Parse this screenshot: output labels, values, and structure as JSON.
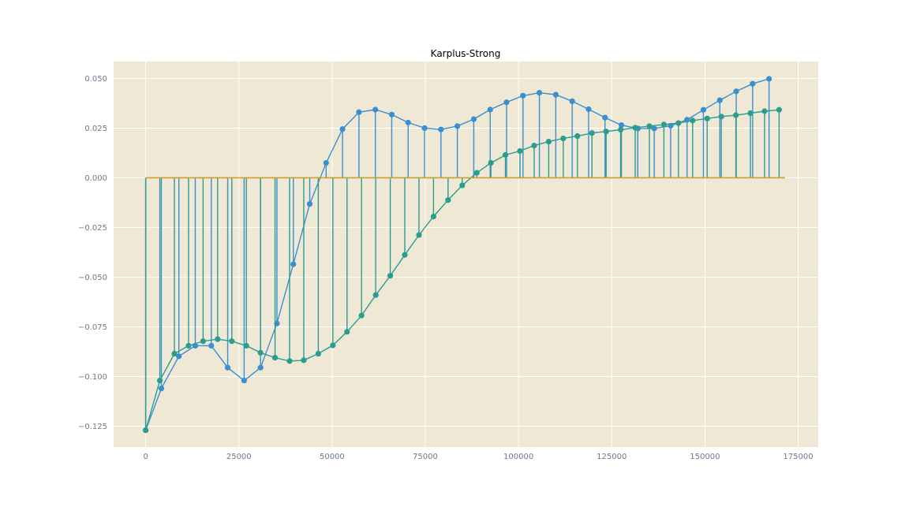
{
  "chart_data": {
    "type": "line",
    "title": "Karplus-Strong",
    "xlabel": "",
    "ylabel": "",
    "xlim": [
      -8600,
      180400
    ],
    "ylim": [
      -0.1355,
      0.0585
    ],
    "xticks": [
      0,
      25000,
      50000,
      75000,
      100000,
      125000,
      150000,
      175000
    ],
    "xtick_labels": [
      "0",
      "25000",
      "50000",
      "75000",
      "100000",
      "125000",
      "150000",
      "175000"
    ],
    "yticks": [
      -0.125,
      -0.1,
      -0.075,
      -0.05,
      -0.025,
      0.0,
      0.025,
      0.05
    ],
    "ytick_labels": [
      "−0.125",
      "−0.100",
      "−0.075",
      "−0.050",
      "−0.025",
      "0.000",
      "0.025",
      "0.050"
    ],
    "grid": true,
    "background": "#eee8d5",
    "baseline": {
      "y": 0,
      "x_range": [
        0,
        171500
      ],
      "color": "#c8a035"
    },
    "series": [
      {
        "style": "stem",
        "color": "#3a8fd0",
        "x": [
          0,
          4200,
          8900,
          13300,
          17600,
          22000,
          26400,
          30800,
          35200,
          39600,
          44000,
          48400,
          52800,
          57200,
          61600,
          66000,
          70400,
          74800,
          79200,
          83600,
          88000,
          92400,
          96800,
          101200,
          105600,
          110000,
          114400,
          118800,
          123200,
          127600,
          132000,
          136400,
          140800,
          145200,
          149600,
          154000,
          158400,
          162800,
          167200
        ],
        "y": [
          -0.127,
          -0.106,
          -0.0898,
          -0.0845,
          -0.0845,
          -0.0955,
          -0.102,
          -0.0955,
          -0.0733,
          -0.0435,
          -0.0132,
          0.0075,
          0.0245,
          0.033,
          0.0343,
          0.0318,
          0.0278,
          0.025,
          0.0243,
          0.026,
          0.0295,
          0.0343,
          0.038,
          0.0413,
          0.0428,
          0.0418,
          0.0385,
          0.0345,
          0.0303,
          0.0265,
          0.0248,
          0.0248,
          0.0262,
          0.0292,
          0.0342,
          0.039,
          0.0435,
          0.0473,
          0.0498
        ]
      },
      {
        "style": "stem",
        "color": "#2a9d8f",
        "x": [
          0,
          3800,
          7700,
          11500,
          15400,
          19300,
          23100,
          27000,
          30800,
          34700,
          38600,
          42400,
          46300,
          50200,
          54000,
          57900,
          61700,
          65600,
          69500,
          73300,
          77200,
          81100,
          84900,
          88800,
          92600,
          96500,
          100400,
          104200,
          108100,
          112000,
          115800,
          119700,
          123500,
          127400,
          131300,
          135100,
          139000,
          142900,
          146700,
          150600,
          154400,
          158300,
          162200,
          166000,
          169900
        ],
        "y": [
          -0.127,
          -0.102,
          -0.0885,
          -0.0845,
          -0.0822,
          -0.0812,
          -0.0822,
          -0.0845,
          -0.088,
          -0.0905,
          -0.0922,
          -0.0918,
          -0.0885,
          -0.0843,
          -0.0775,
          -0.0693,
          -0.059,
          -0.0493,
          -0.0388,
          -0.0288,
          -0.0195,
          -0.0112,
          -0.0038,
          0.0025,
          0.0075,
          0.0115,
          0.0135,
          0.0162,
          0.0182,
          0.0198,
          0.021,
          0.0225,
          0.0233,
          0.0242,
          0.0252,
          0.026,
          0.0268,
          0.0275,
          0.0288,
          0.0298,
          0.0308,
          0.0315,
          0.0325,
          0.0335,
          0.0342
        ]
      }
    ]
  }
}
